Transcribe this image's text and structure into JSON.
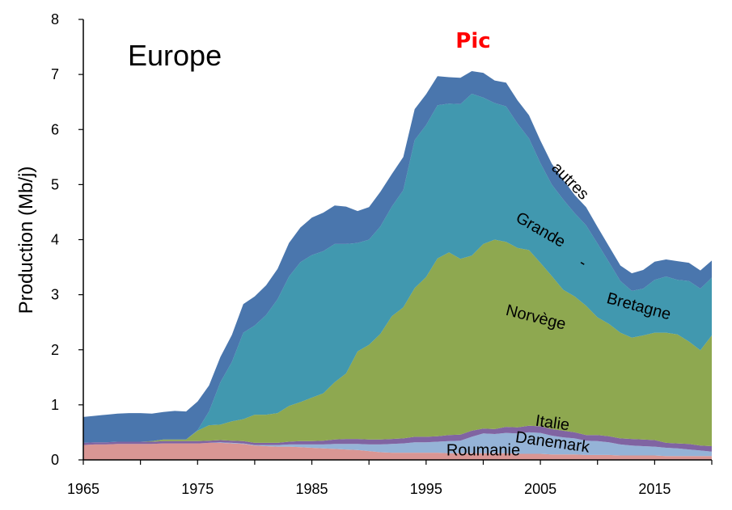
{
  "chart_data": {
    "type": "area",
    "stacked": true,
    "title": "Europe",
    "annotation": "Pic",
    "xlabel": "",
    "ylabel": "Production (Mb/j)",
    "xlim": [
      1965,
      2020
    ],
    "ylim": [
      0,
      8
    ],
    "xticks": [
      1965,
      1975,
      1985,
      1995,
      2005,
      2015
    ],
    "yticks": [
      0,
      1,
      2,
      3,
      4,
      5,
      6,
      7,
      8
    ],
    "grid": false,
    "legend": "none",
    "x": [
      1965,
      1966,
      1967,
      1968,
      1969,
      1970,
      1971,
      1972,
      1973,
      1974,
      1975,
      1976,
      1977,
      1978,
      1979,
      1980,
      1981,
      1982,
      1983,
      1984,
      1985,
      1986,
      1987,
      1988,
      1989,
      1990,
      1991,
      1992,
      1993,
      1994,
      1995,
      1996,
      1997,
      1998,
      1999,
      2000,
      2001,
      2002,
      2003,
      2004,
      2005,
      2006,
      2007,
      2008,
      2009,
      2010,
      2011,
      2012,
      2013,
      2014,
      2015,
      2016,
      2017,
      2018,
      2019,
      2020
    ],
    "series": [
      {
        "name": "Roumanie",
        "color": "#d99694",
        "values": [
          0.27,
          0.28,
          0.28,
          0.29,
          0.29,
          0.29,
          0.29,
          0.3,
          0.3,
          0.3,
          0.3,
          0.31,
          0.31,
          0.3,
          0.29,
          0.26,
          0.25,
          0.24,
          0.24,
          0.23,
          0.22,
          0.21,
          0.2,
          0.19,
          0.18,
          0.16,
          0.14,
          0.13,
          0.13,
          0.13,
          0.13,
          0.13,
          0.12,
          0.12,
          0.12,
          0.12,
          0.12,
          0.12,
          0.11,
          0.11,
          0.11,
          0.1,
          0.1,
          0.1,
          0.09,
          0.09,
          0.09,
          0.08,
          0.08,
          0.08,
          0.08,
          0.07,
          0.07,
          0.07,
          0.07,
          0.07
        ]
      },
      {
        "name": "Danemark",
        "color": "#95b3d7",
        "values": [
          0.0,
          0.0,
          0.0,
          0.0,
          0.0,
          0.0,
          0.0,
          0.0,
          0.0,
          0.0,
          0.0,
          0.0,
          0.01,
          0.01,
          0.01,
          0.01,
          0.02,
          0.03,
          0.04,
          0.05,
          0.06,
          0.07,
          0.09,
          0.1,
          0.11,
          0.12,
          0.14,
          0.16,
          0.17,
          0.19,
          0.19,
          0.2,
          0.22,
          0.23,
          0.3,
          0.36,
          0.35,
          0.37,
          0.37,
          0.39,
          0.38,
          0.34,
          0.31,
          0.29,
          0.26,
          0.25,
          0.23,
          0.2,
          0.18,
          0.17,
          0.16,
          0.15,
          0.14,
          0.12,
          0.1,
          0.08
        ]
      },
      {
        "name": "Italie",
        "color": "#8064a2",
        "values": [
          0.04,
          0.04,
          0.04,
          0.04,
          0.04,
          0.04,
          0.04,
          0.04,
          0.04,
          0.04,
          0.04,
          0.04,
          0.04,
          0.04,
          0.04,
          0.04,
          0.04,
          0.04,
          0.05,
          0.06,
          0.06,
          0.07,
          0.08,
          0.09,
          0.09,
          0.09,
          0.09,
          0.09,
          0.09,
          0.1,
          0.1,
          0.1,
          0.11,
          0.11,
          0.11,
          0.09,
          0.09,
          0.11,
          0.11,
          0.12,
          0.12,
          0.12,
          0.12,
          0.11,
          0.1,
          0.11,
          0.11,
          0.11,
          0.12,
          0.12,
          0.12,
          0.09,
          0.09,
          0.1,
          0.09,
          0.1
        ]
      },
      {
        "name": "Norvège",
        "color": "#8ea850",
        "values": [
          0.0,
          0.0,
          0.0,
          0.0,
          0.0,
          0.0,
          0.01,
          0.03,
          0.03,
          0.03,
          0.19,
          0.28,
          0.28,
          0.35,
          0.4,
          0.51,
          0.51,
          0.54,
          0.65,
          0.71,
          0.79,
          0.86,
          1.04,
          1.19,
          1.59,
          1.72,
          1.92,
          2.23,
          2.38,
          2.7,
          2.9,
          3.23,
          3.32,
          3.19,
          3.18,
          3.35,
          3.44,
          3.36,
          3.26,
          3.19,
          2.97,
          2.78,
          2.56,
          2.47,
          2.35,
          2.14,
          2.04,
          1.92,
          1.84,
          1.89,
          1.95,
          2.0,
          1.98,
          1.86,
          1.73,
          2.01
        ]
      },
      {
        "name": "Grande-Bretagne",
        "color": "#4198af",
        "values": [
          0.0,
          0.0,
          0.0,
          0.0,
          0.0,
          0.0,
          0.0,
          0.0,
          0.0,
          0.0,
          0.01,
          0.25,
          0.77,
          1.08,
          1.57,
          1.62,
          1.81,
          2.07,
          2.35,
          2.54,
          2.59,
          2.58,
          2.51,
          2.35,
          1.97,
          1.91,
          1.95,
          1.99,
          2.13,
          2.69,
          2.76,
          2.78,
          2.7,
          2.81,
          2.94,
          2.66,
          2.48,
          2.46,
          2.26,
          2.03,
          1.81,
          1.66,
          1.64,
          1.51,
          1.46,
          1.34,
          1.12,
          0.94,
          0.85,
          0.85,
          0.96,
          1.02,
          0.99,
          1.1,
          1.12,
          1.05
        ]
      },
      {
        "name": "autres",
        "color": "#4a76ad",
        "values": [
          0.47,
          0.48,
          0.5,
          0.51,
          0.52,
          0.52,
          0.5,
          0.5,
          0.52,
          0.51,
          0.52,
          0.47,
          0.46,
          0.49,
          0.52,
          0.53,
          0.54,
          0.55,
          0.61,
          0.63,
          0.68,
          0.7,
          0.7,
          0.68,
          0.58,
          0.59,
          0.63,
          0.59,
          0.6,
          0.56,
          0.56,
          0.53,
          0.48,
          0.48,
          0.41,
          0.45,
          0.41,
          0.43,
          0.42,
          0.42,
          0.41,
          0.38,
          0.36,
          0.33,
          0.33,
          0.3,
          0.29,
          0.28,
          0.32,
          0.34,
          0.33,
          0.31,
          0.34,
          0.33,
          0.33,
          0.31
        ]
      }
    ],
    "series_labels": [
      {
        "text": "Roumanie",
        "at_x": 2000,
        "at_y": 0.08,
        "angle": 0
      },
      {
        "text": "Danemark",
        "at_x": 2006,
        "at_y": 0.23,
        "angle": 8
      },
      {
        "text": "Italie",
        "at_x": 2006,
        "at_y": 0.58,
        "angle": 8
      },
      {
        "text": "Norvège",
        "at_x": 2004.5,
        "at_y": 2.5,
        "angle": 14
      },
      {
        "text": "Grande",
        "at_x": 2004.8,
        "at_y": 4.1,
        "angle": 30
      },
      {
        "text": "-",
        "at_x": 2008.5,
        "at_y": 3.5,
        "angle": 30
      },
      {
        "text": "Bretagne",
        "at_x": 2013.5,
        "at_y": 2.7,
        "angle": 15
      },
      {
        "text": "autres",
        "at_x": 2007.3,
        "at_y": 5.0,
        "angle": 45
      }
    ]
  }
}
